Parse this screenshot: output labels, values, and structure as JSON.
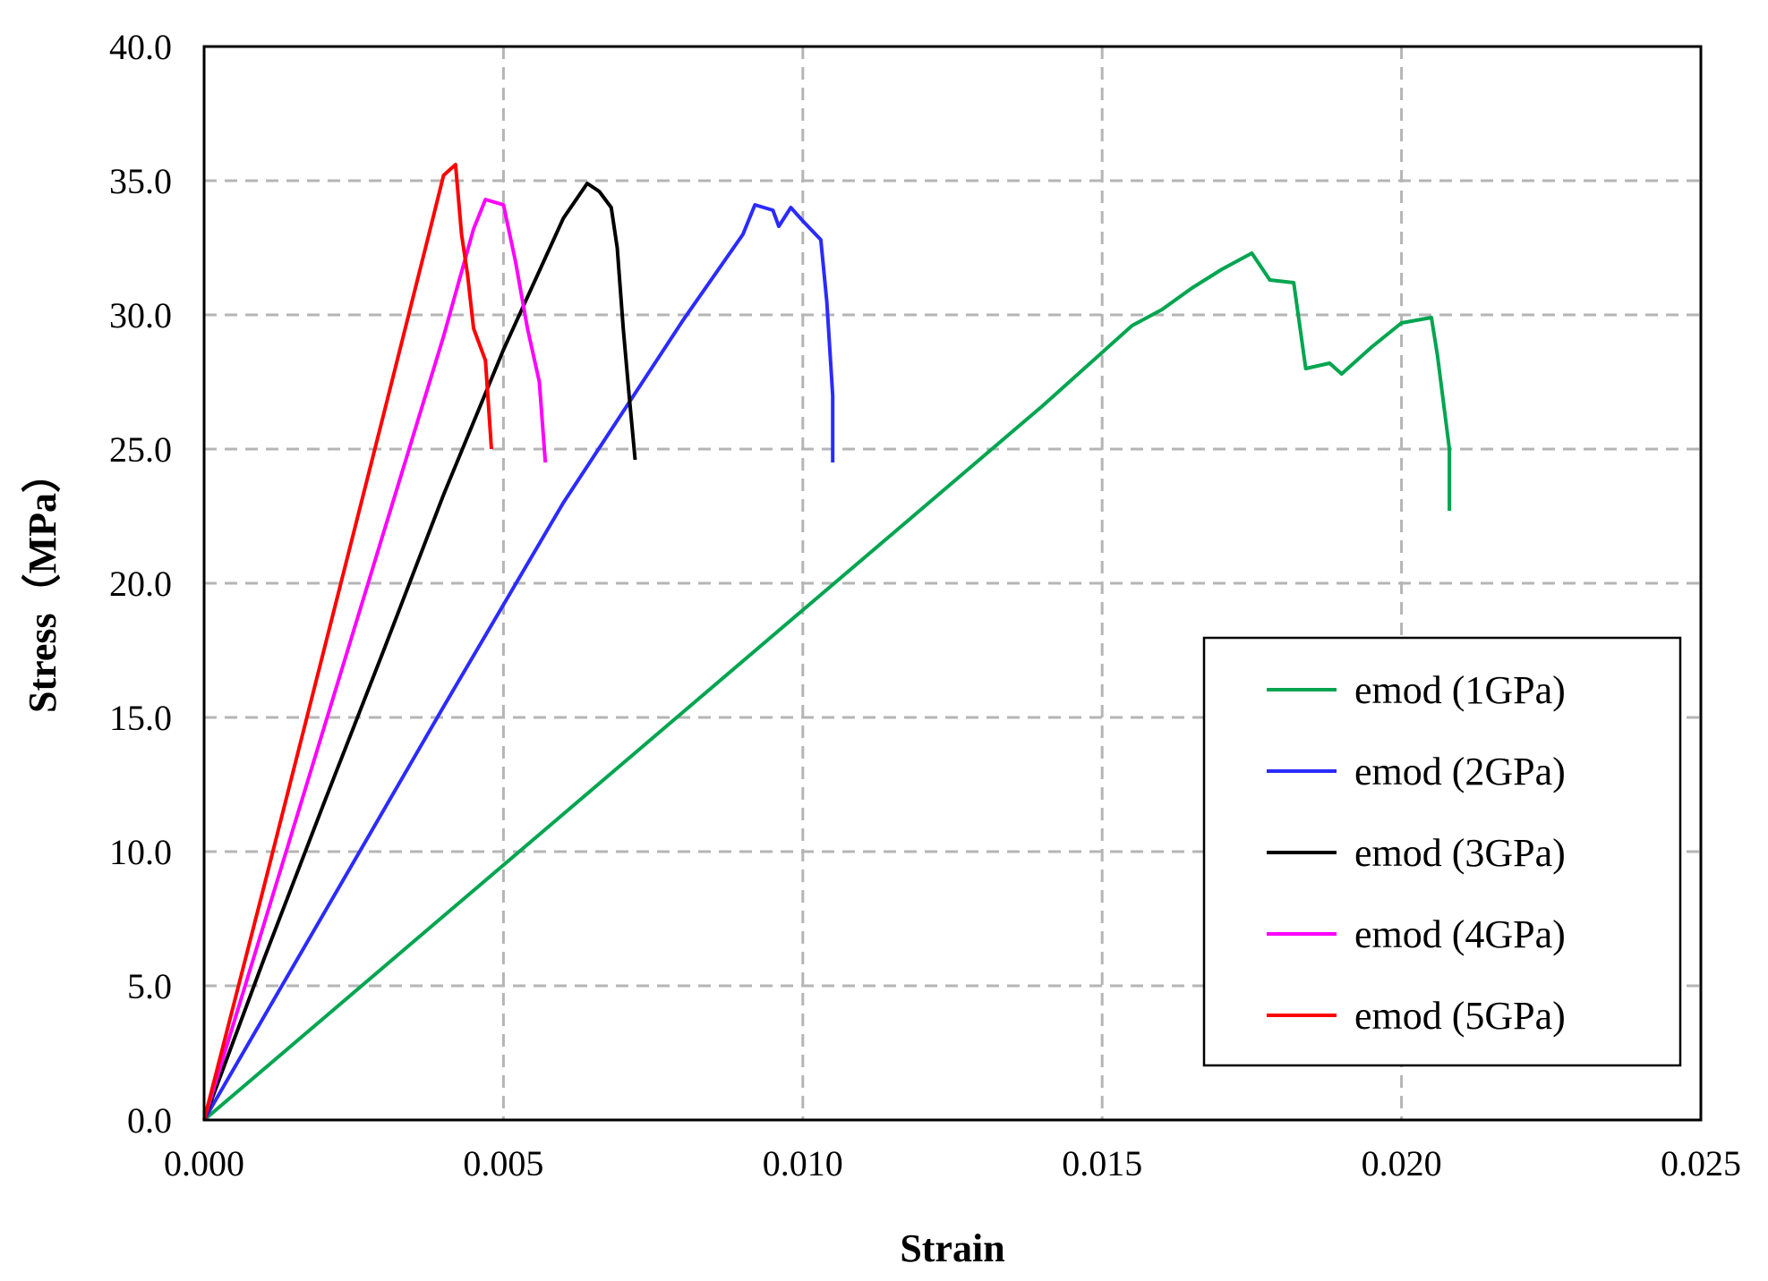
{
  "chart_data": {
    "type": "line",
    "xlabel": "Strain",
    "ylabel": "Stress（MPa）",
    "xlim": [
      0.0,
      0.025
    ],
    "ylim": [
      0.0,
      40.0
    ],
    "x_ticks": [
      "0.000",
      "0.005",
      "0.010",
      "0.015",
      "0.020",
      "0.025"
    ],
    "y_ticks": [
      "0.0",
      "5.0",
      "10.0",
      "15.0",
      "20.0",
      "25.0",
      "30.0",
      "35.0",
      "40.0"
    ],
    "grid": true,
    "legend_position": "bottom-right",
    "series": [
      {
        "name": "emod (1GPa)",
        "color": "#00a550",
        "points": [
          [
            0.0,
            0.0
          ],
          [
            0.002,
            3.8
          ],
          [
            0.004,
            7.6
          ],
          [
            0.006,
            11.4
          ],
          [
            0.008,
            15.2
          ],
          [
            0.01,
            19.0
          ],
          [
            0.012,
            22.8
          ],
          [
            0.014,
            26.6
          ],
          [
            0.0155,
            29.6
          ],
          [
            0.016,
            30.2
          ],
          [
            0.0165,
            31.0
          ],
          [
            0.017,
            31.7
          ],
          [
            0.0175,
            32.3
          ],
          [
            0.0178,
            31.3
          ],
          [
            0.0182,
            31.2
          ],
          [
            0.0184,
            28.0
          ],
          [
            0.0188,
            28.2
          ],
          [
            0.019,
            27.8
          ],
          [
            0.0195,
            28.8
          ],
          [
            0.02,
            29.7
          ],
          [
            0.0205,
            29.9
          ],
          [
            0.0206,
            28.5
          ],
          [
            0.0208,
            25.0
          ],
          [
            0.0208,
            22.7
          ]
        ]
      },
      {
        "name": "emod (2GPa)",
        "color": "#2b2bff",
        "points": [
          [
            0.0,
            0.0
          ],
          [
            0.002,
            7.7
          ],
          [
            0.004,
            15.4
          ],
          [
            0.006,
            23.0
          ],
          [
            0.008,
            29.8
          ],
          [
            0.009,
            33.0
          ],
          [
            0.0092,
            34.1
          ],
          [
            0.0095,
            33.9
          ],
          [
            0.0096,
            33.3
          ],
          [
            0.0098,
            34.0
          ],
          [
            0.01,
            33.5
          ],
          [
            0.0103,
            32.8
          ],
          [
            0.0104,
            30.5
          ],
          [
            0.0105,
            27.0
          ],
          [
            0.0105,
            24.5
          ]
        ]
      },
      {
        "name": "emod (3GPa)",
        "color": "#000000",
        "points": [
          [
            0.0,
            0.0
          ],
          [
            0.001,
            6.0
          ],
          [
            0.002,
            11.8
          ],
          [
            0.003,
            17.5
          ],
          [
            0.004,
            23.3
          ],
          [
            0.005,
            28.7
          ],
          [
            0.006,
            33.6
          ],
          [
            0.0064,
            34.9
          ],
          [
            0.0066,
            34.6
          ],
          [
            0.0068,
            34.0
          ],
          [
            0.0069,
            32.5
          ],
          [
            0.007,
            29.5
          ],
          [
            0.0071,
            27.0
          ],
          [
            0.0072,
            24.6
          ]
        ]
      },
      {
        "name": "emod (4GPa)",
        "color": "#ff00ff",
        "points": [
          [
            0.0,
            0.0
          ],
          [
            0.001,
            7.3
          ],
          [
            0.002,
            14.6
          ],
          [
            0.003,
            21.9
          ],
          [
            0.004,
            29.2
          ],
          [
            0.0045,
            33.2
          ],
          [
            0.0047,
            34.3
          ],
          [
            0.005,
            34.1
          ],
          [
            0.0052,
            32.0
          ],
          [
            0.0054,
            29.5
          ],
          [
            0.0056,
            27.5
          ],
          [
            0.0057,
            24.5
          ]
        ]
      },
      {
        "name": "emod (5GPa)",
        "color": "#ff0000",
        "points": [
          [
            0.0,
            0.0
          ],
          [
            0.001,
            8.7
          ],
          [
            0.002,
            17.5
          ],
          [
            0.003,
            26.3
          ],
          [
            0.0038,
            33.4
          ],
          [
            0.004,
            35.2
          ],
          [
            0.0042,
            35.6
          ],
          [
            0.0043,
            33.0
          ],
          [
            0.0044,
            31.5
          ],
          [
            0.0045,
            29.5
          ],
          [
            0.0047,
            28.3
          ],
          [
            0.0048,
            25.0
          ]
        ]
      }
    ]
  }
}
